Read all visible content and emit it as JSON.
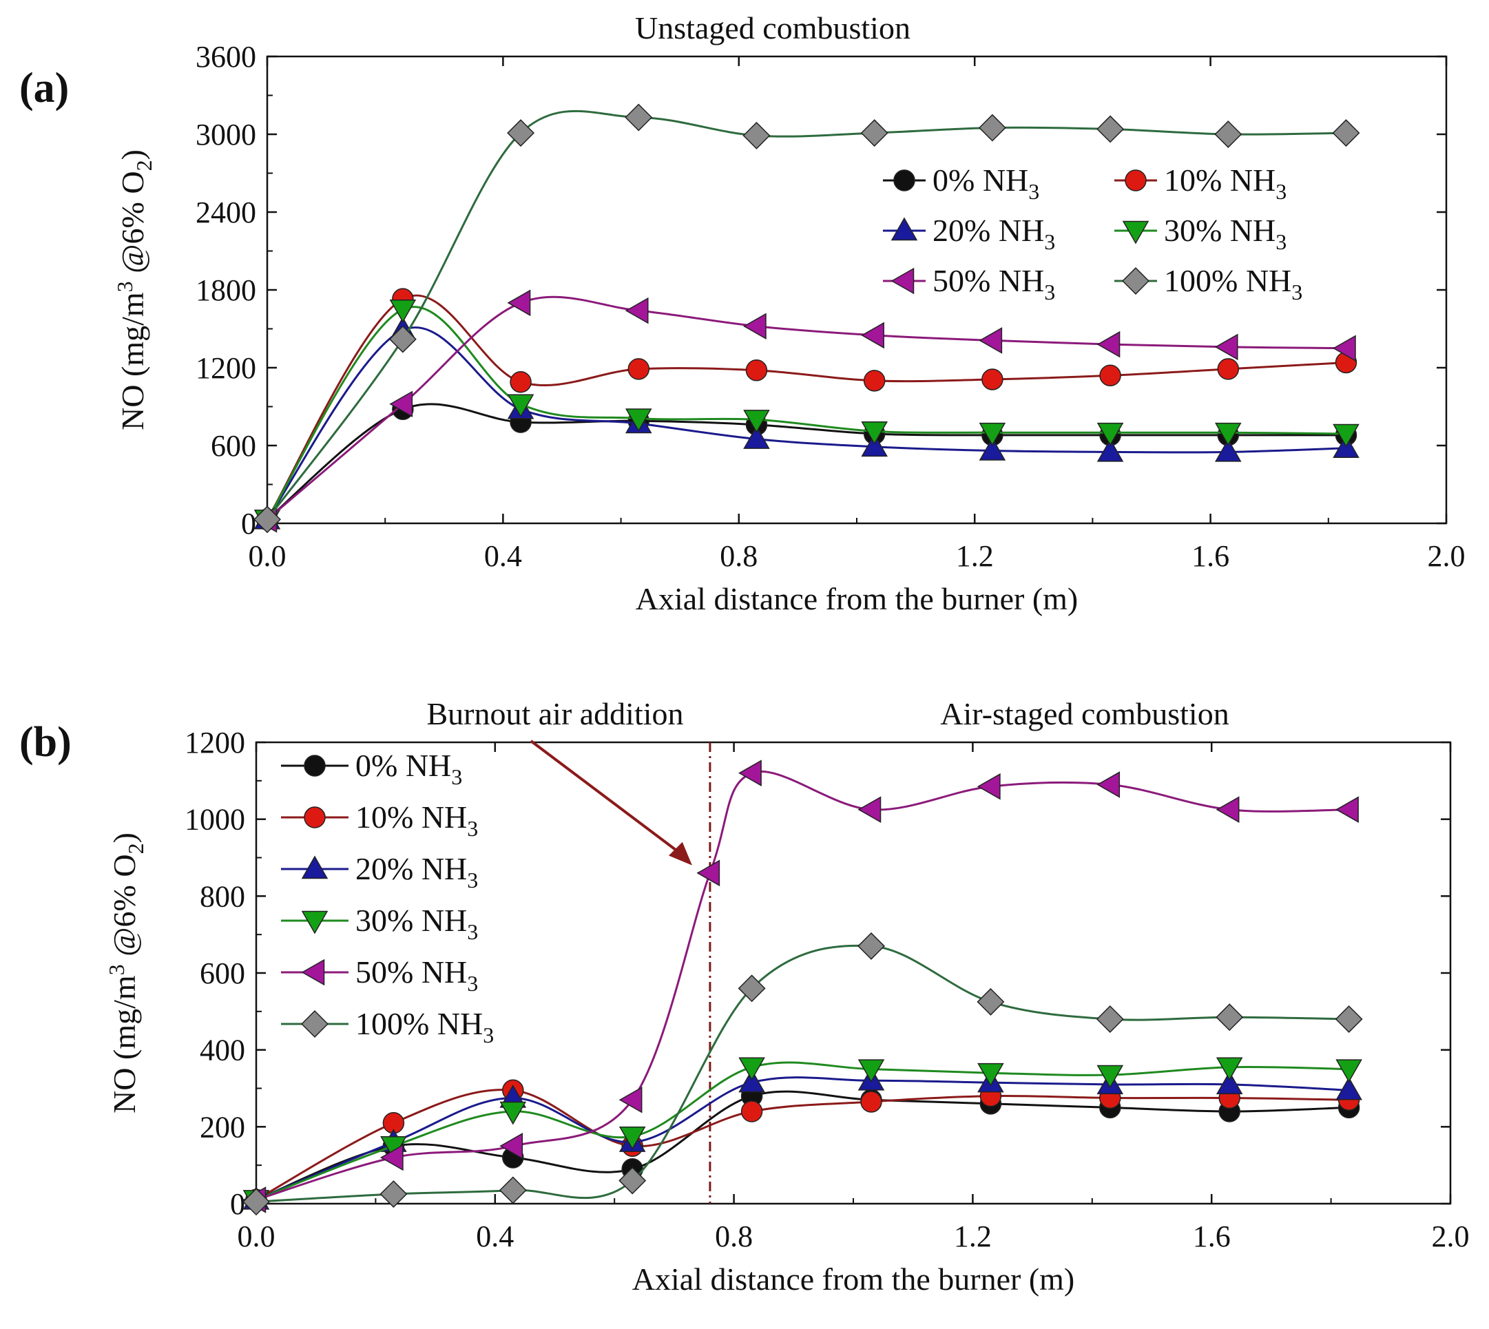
{
  "figure": {
    "background": "#ffffff",
    "frame_color": "#111111"
  },
  "series_styles": [
    {
      "name": "0% NH3",
      "label": "0% NH",
      "sub": "3",
      "line": "#111111",
      "fill": "#111111",
      "marker": "circle"
    },
    {
      "name": "10% NH3",
      "label": "10% NH",
      "sub": "3",
      "line": "#8b1a1a",
      "fill": "#dd1a12",
      "marker": "circle"
    },
    {
      "name": "20% NH3",
      "label": "20% NH",
      "sub": "3",
      "line": "#1a1a8c",
      "fill": "#1a1a9c",
      "marker": "triangle-up"
    },
    {
      "name": "30% NH3",
      "label": "30% NH",
      "sub": "3",
      "line": "#1f8a1f",
      "fill": "#14a014",
      "marker": "triangle-down"
    },
    {
      "name": "50% NH3",
      "label": "50% NH",
      "sub": "3",
      "line": "#8b1a7a",
      "fill": "#a3169a",
      "marker": "triangle-left"
    },
    {
      "name": "100% NH3",
      "label": "100% NH",
      "sub": "3",
      "line": "#2e6b3e",
      "fill": "#8a8a8a",
      "marker": "diamond"
    }
  ],
  "chart_data": [
    {
      "type": "line",
      "panel_label": "(a)",
      "title": "Unstaged combustion",
      "xlabel": "Axial distance from the burner (m)",
      "ylabel": {
        "prefix": "NO (mg/m",
        "sup": "3",
        "mid": " @6% O",
        "sub": "2",
        "suffix": ")"
      },
      "xlim": [
        0.0,
        2.0
      ],
      "ylim": [
        0,
        3600
      ],
      "xticks": [
        0.0,
        0.4,
        0.8,
        1.2,
        1.6,
        2.0
      ],
      "xtick_labels": [
        "0.0",
        "0.4",
        "0.8",
        "1.2",
        "1.6",
        "2.0"
      ],
      "yticks": [
        0,
        600,
        1200,
        1800,
        2400,
        3000,
        3600
      ],
      "ytick_labels": [
        "0",
        "600",
        "1200",
        "1800",
        "2400",
        "3000",
        "3600"
      ],
      "legend_position": "upper-right, three rows of two",
      "x": [
        0.0,
        0.23,
        0.43,
        0.63,
        0.83,
        1.03,
        1.23,
        1.43,
        1.63,
        1.83
      ],
      "series": [
        {
          "name": "0% NH3",
          "values": [
            30,
            880,
            780,
            790,
            760,
            690,
            680,
            680,
            680,
            680
          ]
        },
        {
          "name": "10% NH3",
          "values": [
            30,
            1730,
            1090,
            1190,
            1180,
            1100,
            1110,
            1140,
            1190,
            1240
          ]
        },
        {
          "name": "20% NH3",
          "values": [
            30,
            1490,
            880,
            770,
            650,
            590,
            560,
            550,
            550,
            580
          ]
        },
        {
          "name": "30% NH3",
          "values": [
            30,
            1650,
            920,
            810,
            800,
            710,
            700,
            700,
            700,
            690
          ]
        },
        {
          "name": "50% NH3",
          "values": [
            30,
            920,
            1700,
            1640,
            1520,
            1450,
            1410,
            1380,
            1360,
            1350
          ]
        },
        {
          "name": "100% NH3",
          "values": [
            30,
            1420,
            3010,
            3130,
            2990,
            3010,
            3050,
            3040,
            3000,
            3010
          ]
        }
      ]
    },
    {
      "type": "line",
      "panel_label": "(b)",
      "title": "Air-staged combustion",
      "annotation": "Burnout air addition",
      "marker_line_x": 0.76,
      "xlabel": "Axial distance from the burner (m)",
      "ylabel": {
        "prefix": "NO (mg/m",
        "sup": "3",
        "mid": " @6% O",
        "sub": "2",
        "suffix": ")"
      },
      "xlim": [
        0.0,
        2.0
      ],
      "ylim": [
        0,
        1200
      ],
      "xticks": [
        0.0,
        0.4,
        0.8,
        1.2,
        1.6,
        2.0
      ],
      "xtick_labels": [
        "0.0",
        "0.4",
        "0.8",
        "1.2",
        "1.6",
        "2.0"
      ],
      "yticks": [
        0,
        200,
        400,
        600,
        800,
        1000,
        1200
      ],
      "ytick_labels": [
        "0",
        "200",
        "400",
        "600",
        "800",
        "1000",
        "1200"
      ],
      "legend_position": "upper-left, single column",
      "x": [
        0.0,
        0.23,
        0.43,
        0.63,
        0.76,
        0.83,
        1.03,
        1.23,
        1.43,
        1.63,
        1.83
      ],
      "series": [
        {
          "name": "0% NH3",
          "values": [
            10,
            150,
            120,
            90,
            null,
            280,
            270,
            260,
            250,
            240,
            250
          ]
        },
        {
          "name": "10% NH3",
          "values": [
            10,
            210,
            295,
            150,
            null,
            240,
            265,
            280,
            275,
            275,
            270
          ]
        },
        {
          "name": "20% NH3",
          "values": [
            10,
            160,
            275,
            160,
            null,
            315,
            320,
            315,
            310,
            310,
            295
          ]
        },
        {
          "name": "30% NH3",
          "values": [
            10,
            150,
            240,
            175,
            null,
            355,
            350,
            340,
            335,
            355,
            350
          ]
        },
        {
          "name": "50% NH3",
          "values": [
            10,
            120,
            150,
            270,
            860,
            1120,
            1025,
            1085,
            1090,
            1025,
            1025
          ]
        },
        {
          "name": "100% NH3",
          "values": [
            5,
            25,
            35,
            60,
            null,
            560,
            670,
            525,
            480,
            485,
            480
          ]
        }
      ]
    }
  ]
}
